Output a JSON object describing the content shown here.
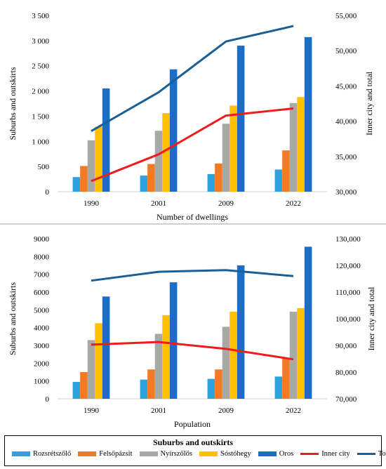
{
  "colors": {
    "Rozsrétszőlő": "#2ea1de",
    "Felsőpázsit": "#f27a21",
    "Nyírszőlős": "#a8a8a8",
    "Sóstóhegy": "#ffc000",
    "Oros": "#1a6ec7",
    "Inner city": "#ee1c1c",
    "Total": "#1a5f96"
  },
  "legend": {
    "title": "Suburbs and outskirts",
    "items": [
      "Rozsrétszőlő",
      "Felsőpázsit",
      "Nyírszőlős",
      "Sóstóhegy",
      "Oros",
      "Inner city",
      "Total"
    ]
  },
  "chart_data": [
    {
      "type": "bar",
      "xlabel": "Number of dwellings",
      "ylabel": "Suburbs and outskirts",
      "y2label": "Inner city and total",
      "categories": [
        "1990",
        "2001",
        "2009",
        "2022"
      ],
      "ylim": [
        0,
        3500
      ],
      "yticks": [
        "0",
        "500",
        "1 000",
        "1 500",
        "2 000",
        "2 500",
        "3 000",
        "3 500"
      ],
      "y2lim": [
        30000,
        55000
      ],
      "y2ticks": [
        "30,000",
        "35,000",
        "40,000",
        "45,000",
        "50,000",
        "55,000"
      ],
      "series": [
        {
          "name": "Rozsrétszőlő",
          "axis": "left",
          "kind": "bar",
          "values": [
            290,
            320,
            350,
            440
          ]
        },
        {
          "name": "Felsőpázsit",
          "axis": "left",
          "kind": "bar",
          "values": [
            510,
            550,
            560,
            820
          ]
        },
        {
          "name": "Nyírszőlős",
          "axis": "left",
          "kind": "bar",
          "values": [
            1020,
            1210,
            1350,
            1760
          ]
        },
        {
          "name": "Sóstóhegy",
          "axis": "left",
          "kind": "bar",
          "values": [
            1290,
            1560,
            1710,
            1880
          ]
        },
        {
          "name": "Oros",
          "axis": "left",
          "kind": "bar",
          "values": [
            2050,
            2430,
            2900,
            3070
          ]
        },
        {
          "name": "Inner city",
          "axis": "right",
          "kind": "line",
          "values": [
            31500,
            35300,
            40800,
            41800
          ]
        },
        {
          "name": "Total",
          "axis": "right",
          "kind": "line",
          "values": [
            38600,
            44100,
            51300,
            53500
          ]
        }
      ]
    },
    {
      "type": "bar",
      "xlabel": "Population",
      "ylabel": "Suburbs and outskirts",
      "y2label": "Inner city and total",
      "categories": [
        "1990",
        "2001",
        "2009",
        "2022"
      ],
      "ylim": [
        0,
        9000
      ],
      "yticks": [
        "0",
        "1000",
        "2000",
        "3000",
        "4000",
        "5000",
        "6000",
        "7000",
        "8000",
        "9000"
      ],
      "y2lim": [
        70000,
        130000
      ],
      "y2ticks": [
        "70,000",
        "80,000",
        "90,000",
        "100,000",
        "110,000",
        "120,000",
        "130,000"
      ],
      "series": [
        {
          "name": "Rozsrétszőlő",
          "axis": "left",
          "kind": "bar",
          "values": [
            950,
            1080,
            1120,
            1250
          ]
        },
        {
          "name": "Felsőpázsit",
          "axis": "left",
          "kind": "bar",
          "values": [
            1500,
            1650,
            1650,
            2250
          ]
        },
        {
          "name": "Nyírszőlős",
          "axis": "left",
          "kind": "bar",
          "values": [
            3300,
            3650,
            4050,
            4900
          ]
        },
        {
          "name": "Sóstóhegy",
          "axis": "left",
          "kind": "bar",
          "values": [
            4250,
            4700,
            4900,
            5100
          ]
        },
        {
          "name": "Oros",
          "axis": "left",
          "kind": "bar",
          "values": [
            5750,
            6550,
            7500,
            8550
          ]
        },
        {
          "name": "Inner city",
          "axis": "right",
          "kind": "line",
          "values": [
            90300,
            91300,
            88700,
            84800
          ]
        },
        {
          "name": "Total",
          "axis": "right",
          "kind": "line",
          "values": [
            114300,
            117600,
            118200,
            116000
          ]
        }
      ]
    }
  ]
}
